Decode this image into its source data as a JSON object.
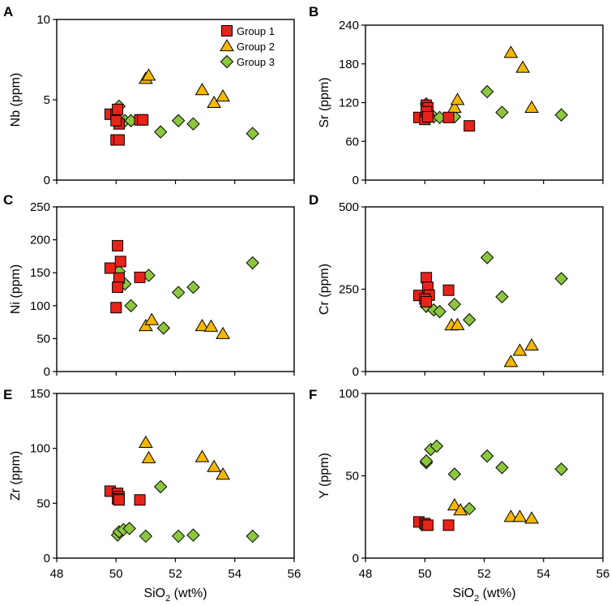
{
  "figure": {
    "x_axis_label": "SiO",
    "x_axis_subscript": "2",
    "x_axis_unit": " (wt%)"
  },
  "legend": {
    "position": "top-right of panel A",
    "entries": [
      {
        "name": "Group 1",
        "marker": "square",
        "color": "#E8231A"
      },
      {
        "name": "Group 2",
        "marker": "triangle",
        "color": "#F5B800"
      },
      {
        "name": "Group 3",
        "marker": "diamond",
        "color": "#8CC63F"
      }
    ]
  },
  "chart_data": [
    {
      "panel": "A",
      "type": "scatter",
      "ylabel": "Nb (ppm)",
      "xlim": [
        48,
        56
      ],
      "ylim": [
        0,
        10
      ],
      "yticks": [
        0,
        5,
        10
      ],
      "series": [
        {
          "name": "Group 1",
          "points": [
            [
              49.8,
              4.1
            ],
            [
              50.0,
              4.1
            ],
            [
              50.05,
              4.4
            ],
            [
              50.1,
              3.5
            ],
            [
              50.0,
              3.7
            ],
            [
              50.0,
              2.5
            ],
            [
              50.1,
              2.5
            ],
            [
              50.8,
              3.75
            ],
            [
              50.9,
              3.75
            ]
          ]
        },
        {
          "name": "Group 2",
          "points": [
            [
              51.0,
              6.3
            ],
            [
              51.1,
              6.5
            ],
            [
              52.9,
              5.6
            ],
            [
              53.3,
              4.8
            ],
            [
              53.6,
              5.2
            ]
          ]
        },
        {
          "name": "Group 3",
          "points": [
            [
              50.1,
              4.6
            ],
            [
              50.3,
              3.7
            ],
            [
              50.5,
              3.7
            ],
            [
              51.5,
              3.0
            ],
            [
              52.1,
              3.7
            ],
            [
              52.6,
              3.5
            ],
            [
              54.6,
              2.9
            ]
          ]
        }
      ]
    },
    {
      "panel": "B",
      "type": "scatter",
      "ylabel": "Sr (ppm)",
      "xlim": [
        48,
        56
      ],
      "ylim": [
        0,
        240
      ],
      "yticks": [
        0,
        60,
        120,
        180,
        240
      ],
      "series": [
        {
          "name": "Group 1",
          "points": [
            [
              49.8,
              97
            ],
            [
              50.0,
              94
            ],
            [
              50.05,
              116
            ],
            [
              50.1,
              112
            ],
            [
              50.05,
              106
            ],
            [
              50.1,
              98
            ],
            [
              50.8,
              97
            ],
            [
              51.5,
              84
            ]
          ]
        },
        {
          "name": "Group 2",
          "points": [
            [
              50.1,
              107
            ],
            [
              51.0,
              112
            ],
            [
              51.1,
              124
            ],
            [
              52.9,
              197
            ],
            [
              53.3,
              174
            ],
            [
              53.6,
              112
            ]
          ]
        },
        {
          "name": "Group 3",
          "points": [
            [
              50.05,
              118
            ],
            [
              50.3,
              98
            ],
            [
              50.5,
              97
            ],
            [
              51.0,
              98
            ],
            [
              52.1,
              137
            ],
            [
              52.6,
              105
            ],
            [
              54.6,
              101
            ]
          ]
        }
      ]
    },
    {
      "panel": "C",
      "type": "scatter",
      "ylabel": "Ni (ppm)",
      "xlim": [
        48,
        56
      ],
      "ylim": [
        0,
        250
      ],
      "yticks": [
        0,
        50,
        100,
        150,
        200,
        250
      ],
      "series": [
        {
          "name": "Group 1",
          "points": [
            [
              49.8,
              157
            ],
            [
              50.05,
              191
            ],
            [
              50.15,
              167
            ],
            [
              50.1,
              142
            ],
            [
              50.05,
              128
            ],
            [
              50.0,
              97
            ],
            [
              50.8,
              143
            ]
          ]
        },
        {
          "name": "Group 2",
          "points": [
            [
              51.0,
              69
            ],
            [
              51.2,
              78
            ],
            [
              52.9,
              69
            ],
            [
              53.2,
              68
            ],
            [
              53.6,
              57
            ]
          ]
        },
        {
          "name": "Group 3",
          "points": [
            [
              50.1,
              152
            ],
            [
              50.3,
              133
            ],
            [
              50.5,
              100
            ],
            [
              51.1,
              146
            ],
            [
              51.6,
              66
            ],
            [
              52.1,
              120
            ],
            [
              52.6,
              128
            ],
            [
              54.6,
              165
            ]
          ]
        }
      ]
    },
    {
      "panel": "D",
      "type": "scatter",
      "ylabel": "Cr (ppm)",
      "xlim": [
        48,
        56
      ],
      "ylim": [
        0,
        500
      ],
      "yticks": [
        0,
        250,
        500
      ],
      "series": [
        {
          "name": "Group 1",
          "points": [
            [
              49.8,
              231
            ],
            [
              50.05,
              285
            ],
            [
              50.1,
              256
            ],
            [
              50.15,
              232
            ],
            [
              50.0,
              220
            ],
            [
              50.05,
              212
            ],
            [
              50.8,
              247
            ]
          ]
        },
        {
          "name": "Group 2",
          "points": [
            [
              50.9,
              140
            ],
            [
              51.1,
              141
            ],
            [
              52.9,
              29
            ],
            [
              53.2,
              63
            ],
            [
              53.6,
              79
            ]
          ]
        },
        {
          "name": "Group 3",
          "points": [
            [
              50.05,
              198
            ],
            [
              50.3,
              187
            ],
            [
              50.5,
              182
            ],
            [
              51.0,
              204
            ],
            [
              51.5,
              157
            ],
            [
              52.1,
              346
            ],
            [
              52.6,
              227
            ],
            [
              54.6,
              282
            ]
          ]
        }
      ]
    },
    {
      "panel": "E",
      "type": "scatter",
      "ylabel": "Zr (ppm)",
      "xlim": [
        48,
        56
      ],
      "ylim": [
        0,
        150
      ],
      "yticks": [
        0,
        50,
        100,
        150
      ],
      "series": [
        {
          "name": "Group 1",
          "points": [
            [
              49.8,
              61
            ],
            [
              50.05,
              59
            ],
            [
              50.1,
              56
            ],
            [
              50.05,
              54
            ],
            [
              50.1,
              53
            ],
            [
              50.8,
              53
            ]
          ]
        },
        {
          "name": "Group 2",
          "points": [
            [
              51.0,
              105
            ],
            [
              51.1,
              91
            ],
            [
              52.9,
              92
            ],
            [
              53.3,
              83
            ],
            [
              53.6,
              76
            ]
          ]
        },
        {
          "name": "Group 3",
          "points": [
            [
              50.05,
              21
            ],
            [
              50.1,
              24
            ],
            [
              50.25,
              26
            ],
            [
              50.45,
              27
            ],
            [
              51.0,
              20
            ],
            [
              51.5,
              65
            ],
            [
              52.1,
              20
            ],
            [
              52.6,
              21
            ],
            [
              54.6,
              20
            ]
          ]
        }
      ]
    },
    {
      "panel": "F",
      "type": "scatter",
      "ylabel": "Y (ppm)",
      "xlim": [
        48,
        56
      ],
      "ylim": [
        0,
        100
      ],
      "yticks": [
        0,
        50,
        100
      ],
      "series": [
        {
          "name": "Group 1",
          "points": [
            [
              49.8,
              22
            ],
            [
              50.0,
              21
            ],
            [
              50.05,
              20
            ],
            [
              50.1,
              20
            ],
            [
              50.8,
              20
            ]
          ]
        },
        {
          "name": "Group 2",
          "points": [
            [
              51.0,
              32
            ],
            [
              51.2,
              29
            ],
            [
              52.9,
              25
            ],
            [
              53.2,
              25
            ],
            [
              53.6,
              24
            ]
          ]
        },
        {
          "name": "Group 3",
          "points": [
            [
              50.05,
              58
            ],
            [
              50.05,
              59
            ],
            [
              50.2,
              66
            ],
            [
              50.4,
              68
            ],
            [
              51.0,
              51
            ],
            [
              51.5,
              30
            ],
            [
              52.1,
              62
            ],
            [
              52.6,
              55
            ],
            [
              54.6,
              54
            ]
          ]
        }
      ]
    }
  ],
  "x_ticks": [
    48,
    50,
    52,
    54,
    56
  ]
}
